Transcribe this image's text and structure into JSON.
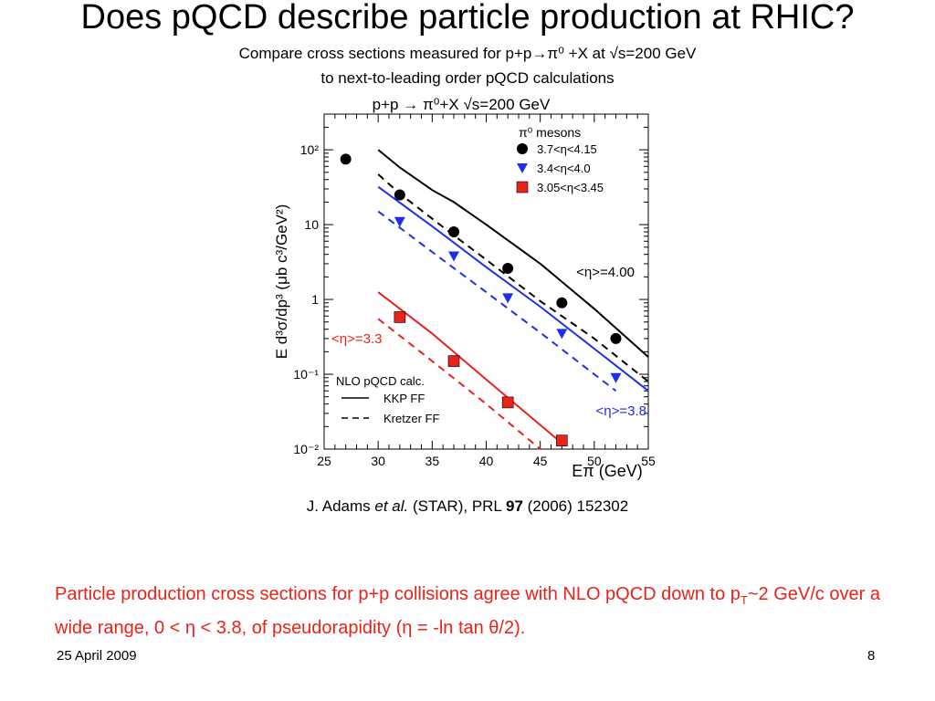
{
  "slide": {
    "title": "Does pQCD describe particle production at RHIC?",
    "subtitle_line1": "Compare cross sections measured for p+p→π⁰ +X at √s=200 GeV",
    "subtitle_line2": "to next-to-leading order pQCD calculations",
    "citation": {
      "author": "J. Adams ",
      "etal": "et al.",
      "mid": " (STAR), PRL ",
      "volume": "97",
      "tail": " (2006) 152302"
    },
    "conclusion": {
      "part1": "Particle production cross sections for p+p collisions agree with NLO pQCD down to p",
      "sub": "T",
      "part2": "~2 GeV/c over a wide range, 0 < η < 3.8, of pseudorapidity (η = -ln tan θ/2)."
    },
    "date": "25 April 2009",
    "page_number": "8",
    "conclusion_color": "#e8231a"
  },
  "chart_data": {
    "type": "scatter",
    "title": "p+p → π⁰+X   √s=200 GeV",
    "xlabel": "Eπ (GeV)",
    "ylabel": "E d³σ/dp³ (μb c³/GeV²)",
    "xlim": [
      25,
      55
    ],
    "ylim": [
      0.01,
      300
    ],
    "yscale": "log",
    "x_ticks": [
      25,
      30,
      35,
      40,
      45,
      50,
      55
    ],
    "y_ticks": [
      {
        "value": 0.01,
        "label": "10⁻²"
      },
      {
        "value": 0.1,
        "label": "10⁻¹"
      },
      {
        "value": 1,
        "label": "1"
      },
      {
        "value": 10,
        "label": "10"
      },
      {
        "value": 100,
        "label": "10²"
      }
    ],
    "legend_title": "π⁰ mesons",
    "legend_position": "top-right",
    "series": [
      {
        "name": "3.7<η<4.15",
        "marker": "circle",
        "color": "#000000",
        "x": [
          27,
          32,
          37,
          42,
          47,
          52
        ],
        "y": [
          75,
          25,
          8,
          2.6,
          0.9,
          0.3
        ]
      },
      {
        "name": "3.4<η<4.0",
        "marker": "triangle-down",
        "color": "#1d2fe8",
        "x": [
          32,
          37,
          42,
          47,
          52
        ],
        "y": [
          11,
          3.8,
          1.05,
          0.35,
          0.09
        ]
      },
      {
        "name": "3.05<η<3.45",
        "marker": "square",
        "color": "#e8231a",
        "x": [
          32,
          37,
          42,
          47
        ],
        "y": [
          0.58,
          0.15,
          0.042,
          0.013
        ]
      }
    ],
    "curves": [
      {
        "color": "#000000",
        "dash": false,
        "x": [
          30,
          32,
          35,
          37,
          40,
          45,
          50,
          55
        ],
        "y": [
          100,
          58,
          29,
          20,
          10,
          3.0,
          0.75,
          0.17
        ]
      },
      {
        "color": "#000000",
        "dash": true,
        "x": [
          30,
          32,
          35,
          37,
          40,
          45,
          50,
          55
        ],
        "y": [
          47,
          26,
          12,
          7.2,
          3.4,
          0.95,
          0.3,
          0.08
        ]
      },
      {
        "color": "#1d2fe8",
        "dash": false,
        "x": [
          30,
          35,
          40,
          45,
          50,
          55
        ],
        "y": [
          32,
          9.5,
          2.7,
          0.8,
          0.22,
          0.06
        ]
      },
      {
        "color": "#1d2fe8",
        "dash": true,
        "x": [
          30,
          35,
          40,
          45,
          50,
          52
        ],
        "y": [
          15,
          4.3,
          1.25,
          0.36,
          0.1,
          0.06
        ]
      },
      {
        "color": "#e8231a",
        "dash": false,
        "x": [
          30,
          35,
          40,
          45,
          47
        ],
        "y": [
          1.25,
          0.35,
          0.085,
          0.021,
          0.012
        ]
      },
      {
        "color": "#e8231a",
        "dash": true,
        "x": [
          30,
          35,
          40,
          45
        ],
        "y": [
          0.55,
          0.15,
          0.04,
          0.01
        ]
      }
    ],
    "annotations": [
      {
        "text": "<η>=4.00",
        "color": "#000000"
      },
      {
        "text": "<η>=3.8",
        "color": "#1d2fe8"
      },
      {
        "text": "<η>=3.3",
        "color": "#e8231a"
      }
    ],
    "nlo_legend": {
      "title": "NLO pQCD calc.",
      "entries": [
        {
          "label": "KKP FF",
          "dash": false
        },
        {
          "label": "Kretzer FF",
          "dash": true
        }
      ]
    }
  }
}
